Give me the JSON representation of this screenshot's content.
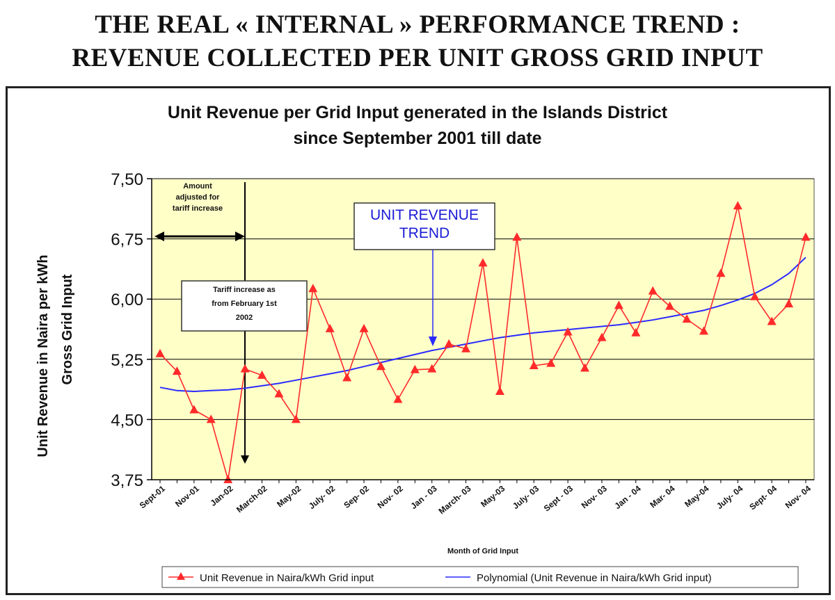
{
  "heading": {
    "line1": "THE REAL « INTERNAL » PERFORMANCE TREND :",
    "line2": "REVENUE COLLECTED PER UNIT GROSS GRID INPUT"
  },
  "colors": {
    "plot_bg": "#ffffc8",
    "series": "#ff2a2a",
    "trend": "#2a2aff",
    "grid": "#000000"
  },
  "chart_data": {
    "type": "line",
    "title_line1": "Unit Revenue per Grid Input generated in the Islands District",
    "title_line2": "since September 2001 till date",
    "ylabel_line1": "Unit Revenue in Naira per kWh",
    "ylabel_line2": "Gross Grid Input",
    "xlabel": "Month of Grid Input",
    "ylim": [
      3.75,
      7.5
    ],
    "yticks": [
      "3,75",
      "4,50",
      "5,25",
      "6,00",
      "6,75",
      "7,50"
    ],
    "ytick_values": [
      3.75,
      4.5,
      5.25,
      6.0,
      6.75,
      7.5
    ],
    "grid": true,
    "legend_position": "bottom",
    "x_tick_labels": [
      "Sept-01",
      "Nov-01",
      "Jan-02",
      "March-02",
      "May-02",
      "July- 02",
      "Sep- 02",
      "Nov- 02",
      "Jan - 03",
      "March- 03",
      "May-03",
      "July- 03",
      "Sept - 03",
      "Nov- 03",
      "Jan - 04",
      "Mar- 04",
      "May-04",
      "July- 04",
      "Sept- 04",
      "Nov- 04"
    ],
    "series": [
      {
        "name": "Unit Revenue in Naira/kWh Grid input",
        "marker": "triangle",
        "values": [
          5.32,
          5.1,
          4.62,
          4.5,
          3.75,
          5.13,
          5.05,
          4.82,
          4.5,
          6.13,
          5.63,
          5.02,
          5.63,
          5.16,
          4.75,
          5.12,
          5.13,
          5.44,
          5.38,
          6.45,
          4.85,
          6.77,
          5.17,
          5.2,
          5.59,
          5.14,
          5.52,
          5.92,
          5.58,
          6.1,
          5.91,
          5.75,
          5.6,
          6.32,
          7.16,
          6.03,
          5.72,
          5.94,
          6.77
        ]
      },
      {
        "name": "Polynomial (Unit Revenue in Naira/kWh Grid input)",
        "marker": "none",
        "values": [
          4.9,
          4.86,
          4.85,
          4.86,
          4.87,
          4.89,
          4.92,
          4.95,
          4.99,
          5.03,
          5.07,
          5.11,
          5.16,
          5.21,
          5.26,
          5.31,
          5.36,
          5.4,
          5.44,
          5.48,
          5.52,
          5.55,
          5.58,
          5.6,
          5.62,
          5.64,
          5.66,
          5.68,
          5.71,
          5.74,
          5.78,
          5.82,
          5.86,
          5.92,
          5.99,
          6.07,
          6.18,
          6.32,
          6.52
        ]
      }
    ],
    "annotations": {
      "trend_label_line1": "UNIT REVENUE",
      "trend_label_line2": "TREND",
      "amount_line1": "Amount",
      "amount_line2": "adjusted for",
      "amount_line3": "tariff increase",
      "tariff_line1": "Tariff increase as",
      "tariff_line2": "from February 1st",
      "tariff_line3": "2002"
    }
  }
}
